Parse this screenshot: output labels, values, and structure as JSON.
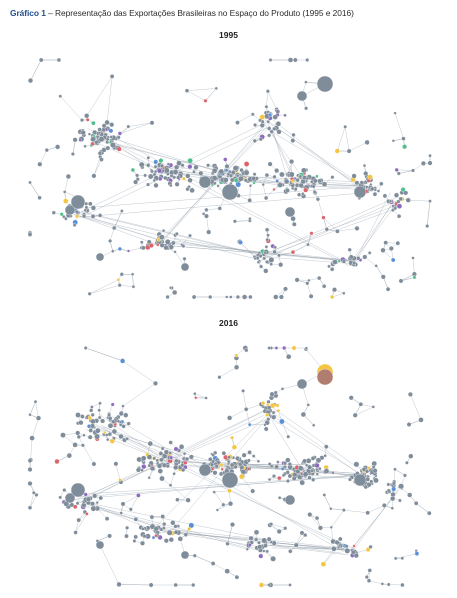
{
  "figure": {
    "label": "Gráfico 1",
    "title": " – Representação das Exportações Brasileiras no Espaço do Produto (1995 e 2016)"
  },
  "panels": [
    {
      "year": "1995"
    },
    {
      "year": "2016"
    }
  ],
  "colors": {
    "default_node": "#7f8c99",
    "edge": "#8a97a3",
    "highlight_yellow": "#f5c542",
    "highlight_red": "#d9646a",
    "highlight_purple": "#8c6bbd",
    "highlight_blue": "#5b8fd6",
    "highlight_green": "#4fbf8b",
    "highlight_brown": "#b07d6f"
  }
}
